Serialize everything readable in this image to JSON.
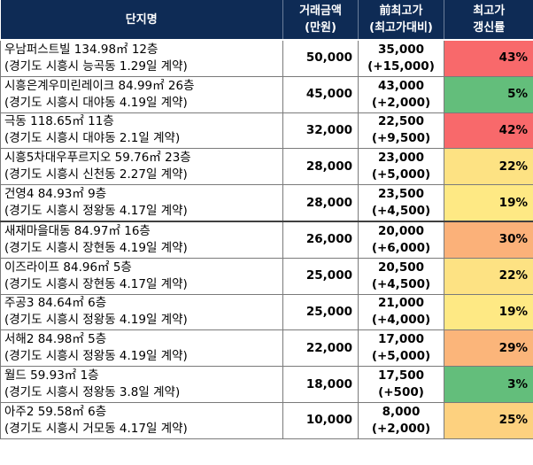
{
  "header": {
    "name": "단지명",
    "price_line1": "거래금액",
    "price_line2": "(만원)",
    "peak_line1": "前최고가",
    "peak_line2": "(최고가대비)",
    "rate_line1": "최고가",
    "rate_line2": "갱신률"
  },
  "rows": [
    {
      "line1": "우남퍼스트빌 134.98㎡ 12층",
      "line2": "(경기도 시흥시 능곡동 1.29일 계약)",
      "price": "50,000",
      "peak": "35,000",
      "diff": "(+15,000)",
      "rate": "43%",
      "color": "#f8696b"
    },
    {
      "line1": "시흥은계우미린레이크 84.99㎡ 26층",
      "line2": "(경기도 시흥시 대야동 4.19일 계약)",
      "price": "45,000",
      "peak": "43,000",
      "diff": "(+2,000)",
      "rate": "5%",
      "color": "#63be7b"
    },
    {
      "line1": "극동 118.65㎡ 11층",
      "line2": "(경기도 시흥시 대야동 2.1일 계약)",
      "price": "32,000",
      "peak": "22,500",
      "diff": "(+9,500)",
      "rate": "42%",
      "color": "#f8696b"
    },
    {
      "line1": "시흥5차대우푸르지오 59.76㎡ 23층",
      "line2": "(경기도 시흥시 신천동 2.27일 계약)",
      "price": "28,000",
      "peak": "23,000",
      "diff": "(+5,000)",
      "rate": "22%",
      "color": "#fde283"
    },
    {
      "line1": "건영4 84.93㎡ 9층",
      "line2": "(경기도 시흥시 정왕동 4.17일 계약)",
      "price": "28,000",
      "peak": "23,500",
      "diff": "(+4,500)",
      "rate": "19%",
      "color": "#fee984"
    },
    {
      "line1": "새재마을대동 84.97㎡ 16층",
      "line2": "(경기도 시흥시 장현동 4.19일 계약)",
      "price": "26,000",
      "peak": "20,000",
      "diff": "(+6,000)",
      "rate": "30%",
      "color": "#fbb179"
    },
    {
      "line1": "이즈라이프 84.96㎡ 5층",
      "line2": "(경기도 시흥시 장현동 4.17일 계약)",
      "price": "25,000",
      "peak": "20,500",
      "diff": "(+4,500)",
      "rate": "22%",
      "color": "#fde283"
    },
    {
      "line1": "주공3 84.64㎡ 6층",
      "line2": "(경기도 시흥시 정왕동 4.19일 계약)",
      "price": "25,000",
      "peak": "21,000",
      "diff": "(+4,000)",
      "rate": "19%",
      "color": "#fee984"
    },
    {
      "line1": "서해2 84.98㎡ 5층",
      "line2": "(경기도 시흥시 정왕동 4.19일 계약)",
      "price": "22,000",
      "peak": "17,000",
      "diff": "(+5,000)",
      "rate": "29%",
      "color": "#fbb57a"
    },
    {
      "line1": "월드 59.93㎡ 1층",
      "line2": "(경기도 시흥시 정왕동 3.8일 계약)",
      "price": "18,000",
      "peak": "17,500",
      "diff": "(+500)",
      "rate": "3%",
      "color": "#63be7b"
    },
    {
      "line1": "아주2 59.58㎡ 6층",
      "line2": "(경기도 시흥시 거모동 4.17일 계약)",
      "price": "10,000",
      "peak": "8,000",
      "diff": "(+2,000)",
      "rate": "25%",
      "color": "#fdd17f"
    }
  ]
}
